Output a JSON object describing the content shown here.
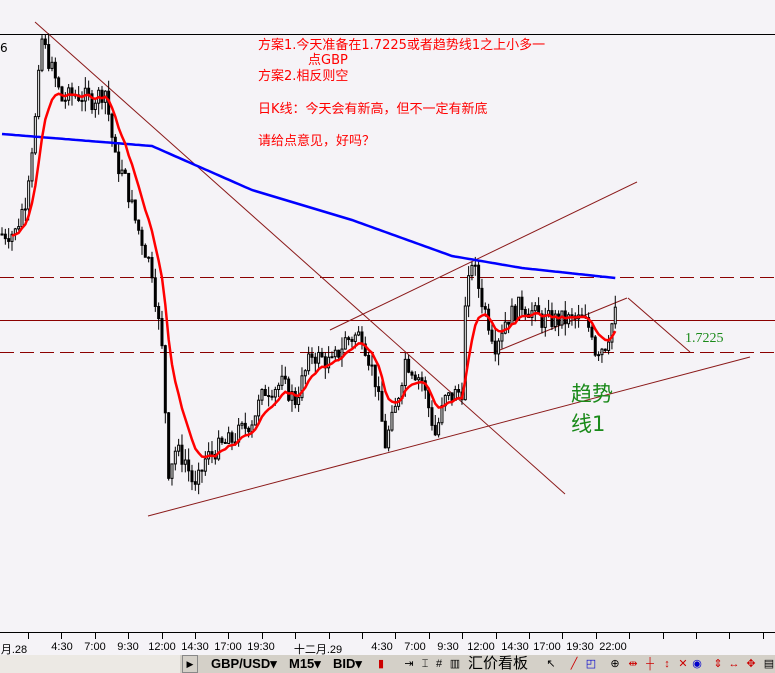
{
  "chart_data": {
    "type": "candlestick",
    "symbol": "GBP/USD",
    "timeframe": "M15",
    "price_type": "BID",
    "x_tick_labels": [
      "月.28",
      "4:30",
      "7:00",
      "9:30",
      "12:00",
      "14:30",
      "17:00",
      "19:30",
      "十二月.29",
      "4:30",
      "7:00",
      "9:30",
      "12:00",
      "14:30",
      "17:00",
      "19:30",
      "22:00"
    ],
    "price_anchors": [
      [
        0,
        1.7284
      ],
      [
        4,
        1.7285
      ],
      [
        7,
        1.7301
      ],
      [
        10,
        1.7341
      ],
      [
        12,
        1.7381
      ],
      [
        15,
        1.7366
      ],
      [
        18,
        1.7351
      ],
      [
        22,
        1.7354
      ],
      [
        27,
        1.7351
      ],
      [
        31,
        1.7356
      ],
      [
        34,
        1.7321
      ],
      [
        37,
        1.7311
      ],
      [
        40,
        1.7291
      ],
      [
        45,
        1.7266
      ],
      [
        48,
        1.7226
      ],
      [
        50,
        1.7166
      ],
      [
        52,
        1.7176
      ],
      [
        55,
        1.7171
      ],
      [
        58,
        1.7156
      ],
      [
        61,
        1.7171
      ],
      [
        64,
        1.7176
      ],
      [
        69,
        1.7181
      ],
      [
        75,
        1.7191
      ],
      [
        79,
        1.7206
      ],
      [
        84,
        1.7209
      ],
      [
        88,
        1.7201
      ],
      [
        93,
        1.7224
      ],
      [
        99,
        1.7219
      ],
      [
        103,
        1.7231
      ],
      [
        108,
        1.7234
      ],
      [
        112,
        1.7211
      ],
      [
        115,
        1.7179
      ],
      [
        118,
        1.7196
      ],
      [
        121,
        1.7221
      ],
      [
        126,
        1.7211
      ],
      [
        130,
        1.7184
      ],
      [
        133,
        1.7201
      ],
      [
        138,
        1.7206
      ],
      [
        139,
        1.7246
      ],
      [
        141,
        1.7271
      ],
      [
        144,
        1.7251
      ],
      [
        148,
        1.7229
      ],
      [
        151,
        1.7241
      ],
      [
        156,
        1.7249
      ],
      [
        162,
        1.7241
      ],
      [
        168,
        1.7241
      ],
      [
        174,
        1.7241
      ],
      [
        177,
        1.7236
      ],
      [
        178,
        1.7226
      ],
      [
        181,
        1.7229
      ],
      [
        184,
        1.7244
      ]
    ],
    "slow_ma_anchors": [
      [
        0,
        1.7334
      ],
      [
        30,
        1.733
      ],
      [
        45,
        1.7328
      ],
      [
        75,
        1.7306
      ],
      [
        105,
        1.7291
      ],
      [
        135,
        1.7273
      ],
      [
        156,
        1.7267
      ],
      [
        184,
        1.7262
      ]
    ],
    "fast_ma_color": "#ff0000",
    "slow_ma_color": "#0000ff",
    "horizontal_levels": [
      {
        "price": 1.7384,
        "style": "solid",
        "color": "#000000"
      },
      {
        "price": 1.72625,
        "style": "dashed",
        "color": "#8b0000"
      },
      {
        "price": 1.7241,
        "style": "solid",
        "color": "#8b0000"
      },
      {
        "price": 1.7225,
        "style": "dashed",
        "color": "#8b0000"
      }
    ],
    "level_label": "1.7225",
    "trendline_label": [
      "趋势",
      "线1"
    ]
  },
  "annotations": {
    "line1": "方案1.今天准备在1.7225或者趋势线1之上小多一",
    "line1b": "点GBP",
    "line2": "方案2.相反则空",
    "line3": "日K线：今天会有新高，但不一定有新底",
    "line4": "请给点意见，好吗？"
  },
  "toolbar": {
    "symbol": "GBP/USD",
    "timeframe": "M15",
    "price": "BID",
    "quote_board": "汇价看板",
    "dropdown": "▾",
    "icons": [
      "candle-icon",
      "scroll-end-icon",
      "shift-icon",
      "grid-icon",
      "volume-icon",
      "cursor-icon",
      "trendline-icon",
      "objects-icon",
      "zoom-in-icon",
      "vertical-line-icon",
      "horizontal-line-icon",
      "cross-icon",
      "crosshair-icon",
      "zoom-fit-icon",
      "period-up-icon",
      "period-step-icon",
      "period-all-icon",
      "template-icon"
    ]
  },
  "top_left_fragment": "6"
}
